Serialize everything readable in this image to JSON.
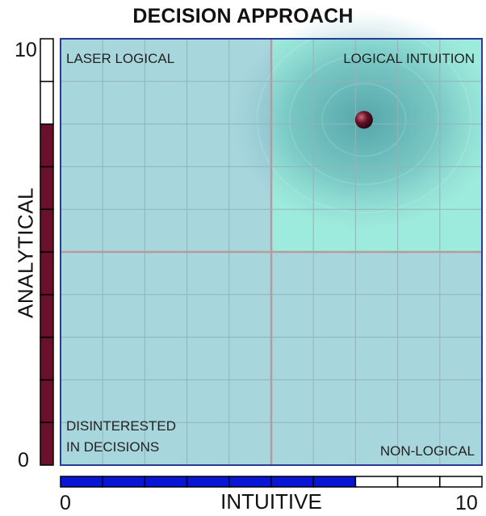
{
  "chart_data": {
    "type": "scatter",
    "title": "DECISION APPROACH",
    "xlabel": "INTUITIVE",
    "ylabel": "ANALYTICAL",
    "xlim": [
      0,
      10
    ],
    "ylim": [
      0,
      10
    ],
    "x_tick_labels": {
      "min": "0",
      "max": "10"
    },
    "y_tick_labels": {
      "min": "0",
      "max": "10"
    },
    "grid": true,
    "quadrants": {
      "top_left": "LASER LOGICAL",
      "top_right": "LOGICAL INTUITION",
      "bottom_left_line1": "DISINTERESTED",
      "bottom_left_line2": "IN DECISIONS",
      "bottom_right": "NON-LOGICAL"
    },
    "point": {
      "x": 7.2,
      "y": 8.1
    },
    "x_bar_filled": 7,
    "y_bar_filled": 8,
    "colors": {
      "plot_bg": "#a8d6dd",
      "highlight_quadrant": "#9af0dc",
      "x_bar": "#0a16d6",
      "y_bar": "#6a0f2c",
      "point": "#5a0e1e"
    }
  }
}
